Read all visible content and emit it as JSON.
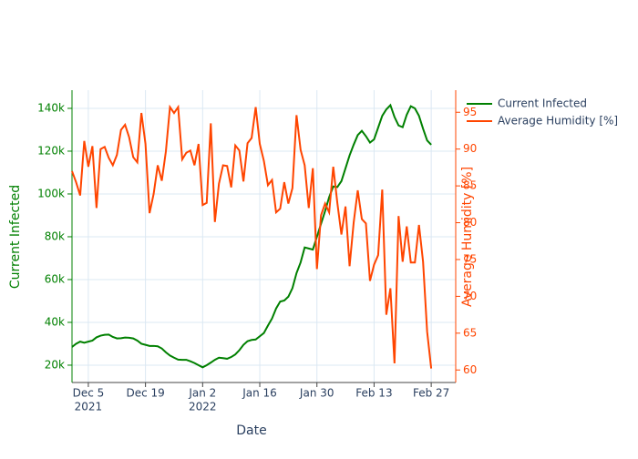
{
  "chart_data": {
    "type": "line",
    "xlabel": "Date",
    "ylabel": "Current Infected",
    "y2label": "Average Humidity [%]",
    "x": [
      "2021-12-01",
      "2021-12-02",
      "2021-12-03",
      "2021-12-04",
      "2021-12-05",
      "2021-12-06",
      "2021-12-07",
      "2021-12-08",
      "2021-12-09",
      "2021-12-10",
      "2021-12-11",
      "2021-12-12",
      "2021-12-13",
      "2021-12-14",
      "2021-12-15",
      "2021-12-16",
      "2021-12-17",
      "2021-12-18",
      "2021-12-19",
      "2021-12-20",
      "2021-12-21",
      "2021-12-22",
      "2021-12-23",
      "2021-12-24",
      "2021-12-25",
      "2021-12-26",
      "2021-12-27",
      "2021-12-28",
      "2021-12-29",
      "2021-12-30",
      "2021-12-31",
      "2022-01-01",
      "2022-01-02",
      "2022-01-03",
      "2022-01-04",
      "2022-01-05",
      "2022-01-06",
      "2022-01-07",
      "2022-01-08",
      "2022-01-09",
      "2022-01-10",
      "2022-01-11",
      "2022-01-12",
      "2022-01-13",
      "2022-01-14",
      "2022-01-15",
      "2022-01-16",
      "2022-01-17",
      "2022-01-18",
      "2022-01-19",
      "2022-01-20",
      "2022-01-21",
      "2022-01-22",
      "2022-01-23",
      "2022-01-24",
      "2022-01-25",
      "2022-01-26",
      "2022-01-27",
      "2022-01-28",
      "2022-01-29",
      "2022-01-30",
      "2022-01-31",
      "2022-02-01",
      "2022-02-02",
      "2022-02-03",
      "2022-02-04",
      "2022-02-05",
      "2022-02-06",
      "2022-02-07",
      "2022-02-08",
      "2022-02-09",
      "2022-02-10",
      "2022-02-11",
      "2022-02-12",
      "2022-02-13",
      "2022-02-14",
      "2022-02-15",
      "2022-02-16",
      "2022-02-17",
      "2022-02-18",
      "2022-02-19",
      "2022-02-20",
      "2022-02-21",
      "2022-02-22",
      "2022-02-23",
      "2022-02-24",
      "2022-02-25",
      "2022-02-26",
      "2022-02-27"
    ],
    "series": [
      {
        "name": "Current Infected",
        "color": "#008000",
        "values": [
          28500,
          30000,
          31000,
          30500,
          31000,
          31500,
          33000,
          33800,
          34200,
          34300,
          33200,
          32500,
          32600,
          32900,
          32800,
          32500,
          31500,
          30000,
          29500,
          29000,
          29000,
          28800,
          27800,
          26000,
          24500,
          23500,
          22600,
          22500,
          22500,
          21800,
          21000,
          20000,
          19000,
          20000,
          21200,
          22500,
          23500,
          23300,
          23000,
          23800,
          25000,
          27000,
          29500,
          31200,
          31800,
          32000,
          33500,
          35000,
          38500,
          41800,
          46500,
          49700,
          50200,
          52000,
          56000,
          63000,
          68000,
          75000,
          74500,
          74000,
          80000,
          86000,
          92000,
          98500,
          103500,
          103200,
          106000,
          112000,
          118000,
          123000,
          127500,
          129500,
          127000,
          124000,
          125500,
          131000,
          136500,
          139500,
          141500,
          136000,
          132000,
          131200,
          137000,
          141000,
          140000,
          136500,
          130500,
          125000,
          123000
        ]
      },
      {
        "name": "Average Humidity [%]",
        "color": "#ff4500",
        "axis": "y2",
        "values": [
          87,
          85.5,
          83.7,
          91.1,
          87.6,
          90.4,
          82,
          90,
          90.3,
          88.8,
          87.8,
          89.2,
          92.6,
          93.3,
          91.6,
          88.9,
          88.2,
          94.9,
          90.7,
          81.3,
          83.9,
          87.8,
          85.7,
          89.7,
          95.7,
          94.9,
          95.7,
          88.6,
          89.5,
          89.8,
          87.8,
          90.7,
          82.4,
          82.7,
          93.5,
          80.1,
          85.3,
          87.8,
          87.7,
          84.8,
          90.5,
          89.8,
          85.6,
          90.8,
          91.5,
          95.7,
          90.7,
          88.4,
          85.1,
          85.8,
          81.4,
          81.9,
          85.5,
          82.6,
          84.7,
          94.6,
          89.9,
          87.8,
          82,
          87.4,
          73.7,
          81,
          82.6,
          81.4,
          87.6,
          82.7,
          78.4,
          82.2,
          74.1,
          80,
          84.4,
          80.5,
          79.9,
          72.1,
          74.3,
          75.6,
          84.5,
          67.5,
          71.1,
          60.9,
          80.9,
          74.7,
          79.5,
          74.6,
          74.6,
          79.7,
          74.7,
          65.2,
          60.2
        ]
      }
    ],
    "xlim": [
      "2021-12-01",
      "2022-03-05"
    ],
    "xticks": [
      {
        "value": "2021-12-05",
        "label": "Dec 5",
        "year": "2021"
      },
      {
        "value": "2021-12-19",
        "label": "Dec 19"
      },
      {
        "value": "2022-01-02",
        "label": "Jan 2",
        "year": "2022"
      },
      {
        "value": "2022-01-16",
        "label": "Jan 16"
      },
      {
        "value": "2022-01-30",
        "label": "Jan 30"
      },
      {
        "value": "2022-02-13",
        "label": "Feb 13"
      },
      {
        "value": "2022-02-27",
        "label": "Feb 27"
      }
    ],
    "ylim": [
      11900,
      148500
    ],
    "yticks": [
      {
        "value": 20000,
        "label": "20k"
      },
      {
        "value": 40000,
        "label": "40k"
      },
      {
        "value": 60000,
        "label": "60k"
      },
      {
        "value": 80000,
        "label": "80k"
      },
      {
        "value": 100000,
        "label": "100k"
      },
      {
        "value": 120000,
        "label": "120k"
      },
      {
        "value": 140000,
        "label": "140k"
      }
    ],
    "y2lim": [
      58.3,
      98
    ],
    "y2ticks": [
      60,
      65,
      70,
      75,
      80,
      85,
      90,
      95
    ],
    "grid": true,
    "legend": "top-right"
  }
}
